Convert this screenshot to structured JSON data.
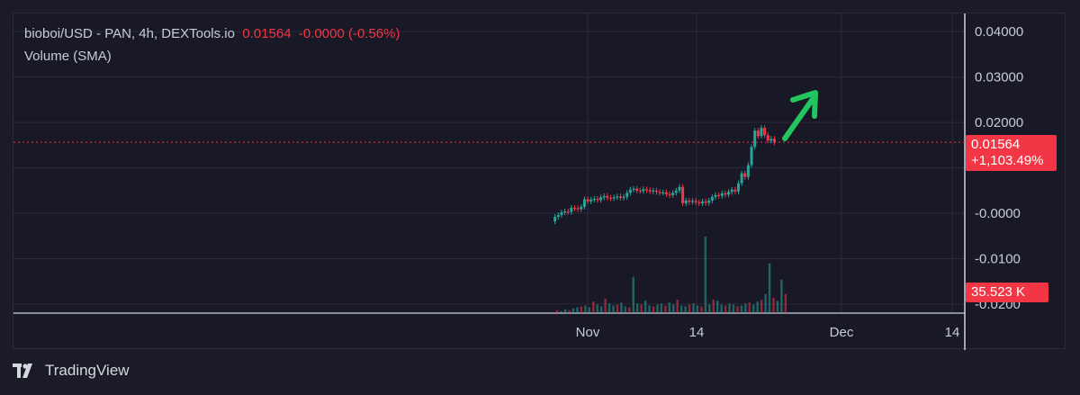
{
  "legend": {
    "symbol": "bioboi/USD - PAN, 4h, DEXTools.io",
    "price": "0.01564",
    "change": "-0.0000 (-0.56%)",
    "volume_label": "Volume (SMA)"
  },
  "badges": {
    "price": "0.01564",
    "percent": "+1,103.49%",
    "volume": "35.523 K"
  },
  "brand": {
    "name": "TradingView",
    "logo": "tradingview-logo-icon"
  },
  "colors": {
    "up": "#26a69a",
    "down": "#f23645",
    "arrow": "#22c55e",
    "background": "#181826",
    "grid": "#2a2a3b",
    "text": "#c9cbd6"
  },
  "chart_data": {
    "type": "candlestick",
    "interval": "4h",
    "y_ticks": [
      "0.04000",
      "0.03000",
      "0.02000",
      "-0.0000",
      "-0.0100",
      "-0.0200"
    ],
    "x_ticks": [
      "Nov",
      "14",
      "Dec",
      "14"
    ],
    "ylim": [
      -0.022,
      0.044
    ],
    "current_price": 0.01564,
    "current_change_pct": "+1,103.49%",
    "annotation": "green-up-arrow",
    "price_path": [
      [
        0,
        -0.0018
      ],
      [
        2,
        -0.0008
      ],
      [
        4,
        -0.0004
      ],
      [
        6,
        0.0002
      ],
      [
        8,
        0.0004
      ],
      [
        10,
        0.0003
      ],
      [
        12,
        0.0012
      ],
      [
        14,
        0.0011
      ],
      [
        16,
        0.0009
      ],
      [
        18,
        0.0014
      ],
      [
        20,
        0.0031
      ],
      [
        22,
        0.0026
      ],
      [
        24,
        0.003
      ],
      [
        26,
        0.0032
      ],
      [
        28,
        0.0029
      ],
      [
        30,
        0.0035
      ],
      [
        32,
        0.0038
      ],
      [
        34,
        0.0034
      ],
      [
        36,
        0.0033
      ],
      [
        38,
        0.0035
      ],
      [
        40,
        0.0037
      ],
      [
        42,
        0.0034
      ],
      [
        44,
        0.0036
      ],
      [
        46,
        0.0045
      ],
      [
        48,
        0.0052
      ],
      [
        50,
        0.0054
      ],
      [
        52,
        0.005
      ],
      [
        54,
        0.0049
      ],
      [
        56,
        0.0053
      ],
      [
        58,
        0.0051
      ],
      [
        60,
        0.0048
      ],
      [
        62,
        0.005
      ],
      [
        64,
        0.0047
      ],
      [
        66,
        0.0045
      ],
      [
        68,
        0.0046
      ],
      [
        70,
        0.0042
      ],
      [
        72,
        0.004
      ],
      [
        74,
        0.0045
      ],
      [
        76,
        0.005
      ],
      [
        78,
        0.0058
      ],
      [
        80,
        0.0022
      ],
      [
        82,
        0.0028
      ],
      [
        84,
        0.0025
      ],
      [
        86,
        0.0027
      ],
      [
        88,
        0.0024
      ],
      [
        90,
        0.0022
      ],
      [
        92,
        0.0026
      ],
      [
        94,
        0.0023
      ],
      [
        96,
        0.0028
      ],
      [
        98,
        0.0036
      ],
      [
        100,
        0.004
      ],
      [
        102,
        0.0038
      ],
      [
        104,
        0.0044
      ],
      [
        106,
        0.0041
      ],
      [
        108,
        0.0047
      ],
      [
        110,
        0.0052
      ],
      [
        112,
        0.0048
      ],
      [
        114,
        0.0066
      ],
      [
        116,
        0.0088
      ],
      [
        118,
        0.008
      ],
      [
        120,
        0.0106
      ],
      [
        122,
        0.0146
      ],
      [
        124,
        0.0182
      ],
      [
        126,
        0.017
      ],
      [
        128,
        0.0188
      ],
      [
        130,
        0.0172
      ],
      [
        132,
        0.016
      ],
      [
        134,
        0.0164
      ],
      [
        136,
        0.0156
      ]
    ],
    "volume": [
      0.3,
      0.2,
      0.4,
      0.3,
      0.5,
      0.6,
      0.7,
      0.8,
      0.6,
      1.2,
      0.9,
      0.7,
      1.5,
      1.0,
      0.8,
      0.9,
      1.1,
      0.7,
      0.6,
      3.8,
      1.0,
      0.9,
      1.3,
      0.8,
      0.7,
      0.9,
      1.0,
      0.8,
      1.1,
      0.9,
      1.4,
      0.8,
      0.7,
      0.9,
      1.0,
      0.8,
      0.7,
      8.0,
      0.9,
      1.4,
      1.3,
      0.9,
      0.8,
      1.0,
      0.9,
      0.7,
      0.8,
      1.0,
      1.1,
      0.9,
      1.2,
      1.4,
      2.0,
      5.2,
      1.6,
      1.3,
      3.5,
      2.0
    ]
  }
}
